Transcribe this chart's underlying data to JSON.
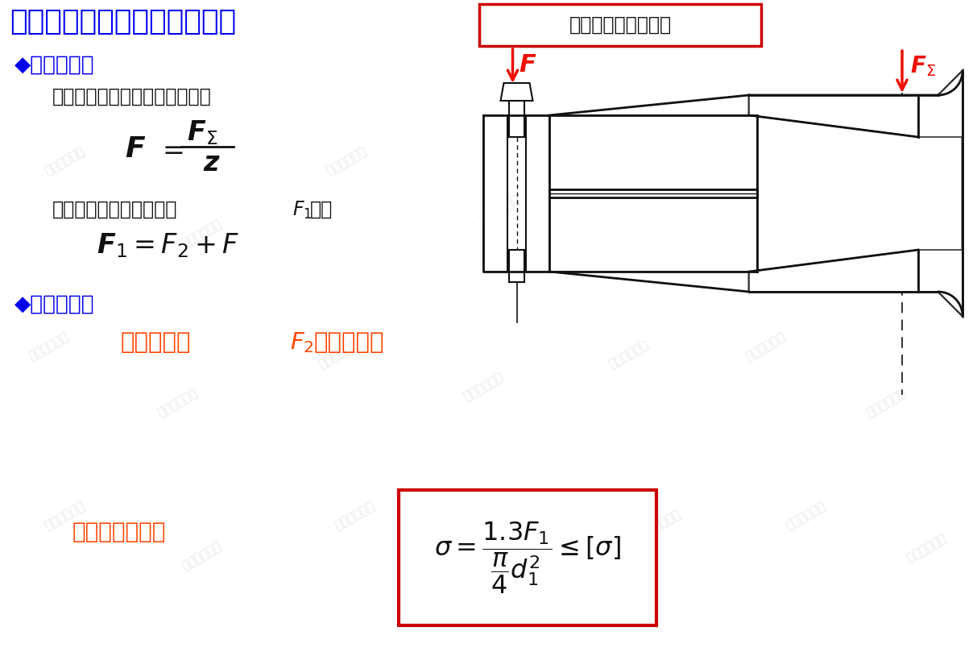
{
  "title_text": "三、受轴向载荷的螺栓组联接",
  "top_right_box_text": "只能采用普通螺栓。",
  "bullet1_title": "◆受力分析：",
  "line1": "每个螺栓所受轴向工作载荷为：",
  "line2_pre": "每个螺栓所承受的总载荷",
  "line2_end": "为：",
  "bullet2_title": "◆设计准则：",
  "design_text1": "残余预紧力",
  "design_text2": "满足要求。",
  "strength_label": "螺栓强度条件：",
  "bg_color": "#ffffff",
  "title_color": "#0000ee",
  "black_color": "#111111",
  "red_color": "#ee1100",
  "orange_color": "#ff4400",
  "wm_color": "#d0d0d0",
  "box_edge_color": "#cc0000",
  "hatch_color": "#333333",
  "line_color": "#111111"
}
